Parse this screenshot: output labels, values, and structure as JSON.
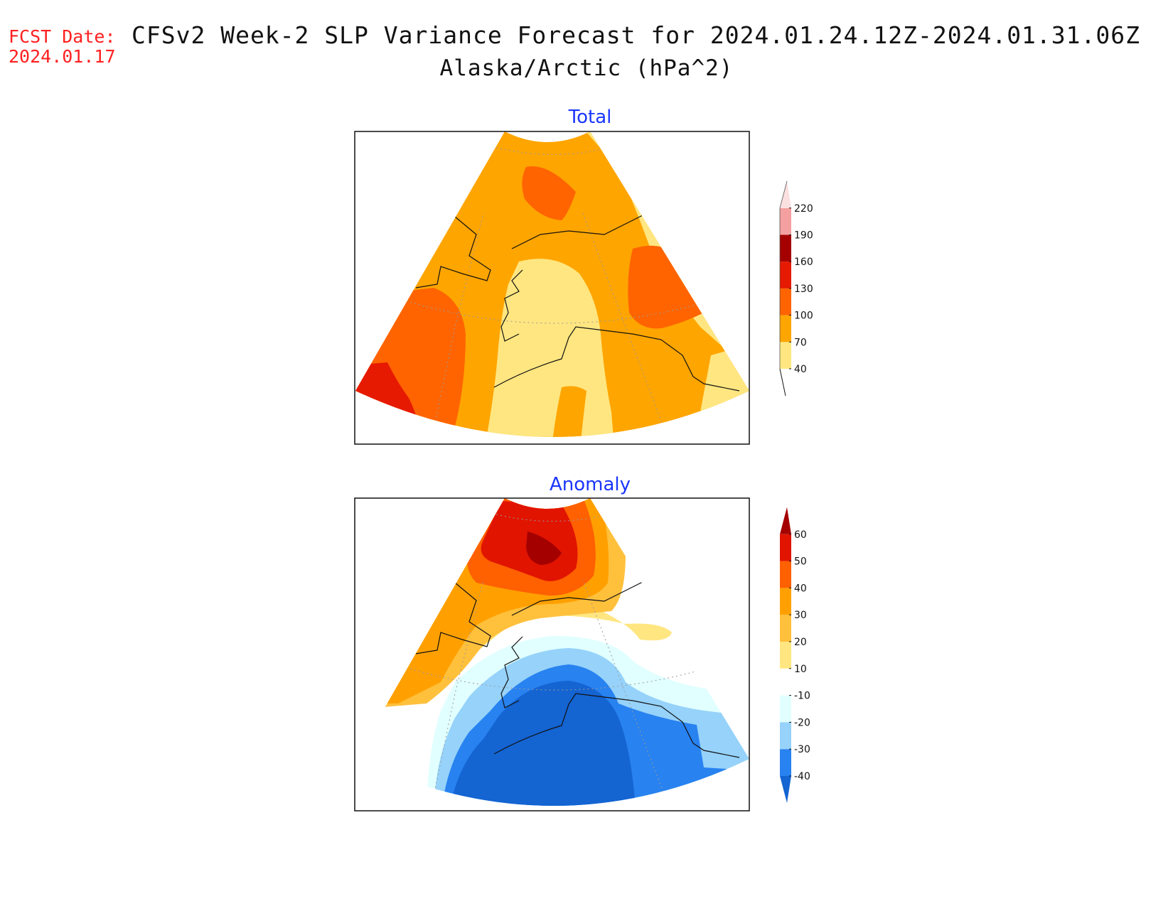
{
  "header": {
    "fcst_label": "FCST Date:",
    "fcst_date": "2024.01.17",
    "title": "CFSv2 Week-2 SLP Variance Forecast for 2024.01.24.12Z-2024.01.31.06Z",
    "subtitle": "Alaska/Arctic (hPa^2)"
  },
  "panels": {
    "total": {
      "title": "Total",
      "colorbar": {
        "levels": [
          "40",
          "70",
          "100",
          "130",
          "160",
          "190",
          "220"
        ],
        "colors": [
          "#ffe680",
          "#ffa500",
          "#ff6400",
          "#e61a00",
          "#a50000",
          "#f4a0a0",
          "#fbe0e0"
        ]
      }
    },
    "anomaly": {
      "title": "Anomaly",
      "colorbar": {
        "levels": [
          "-40",
          "-30",
          "-20",
          "-10",
          "10",
          "20",
          "30",
          "40",
          "50",
          "60"
        ],
        "colors": [
          "#1464d2",
          "#2882f0",
          "#96d2fa",
          "#e1ffff",
          "#ffffff",
          "#ffe680",
          "#ffc03c",
          "#ffa000",
          "#ff6000",
          "#e11400",
          "#a50000"
        ]
      }
    }
  }
}
